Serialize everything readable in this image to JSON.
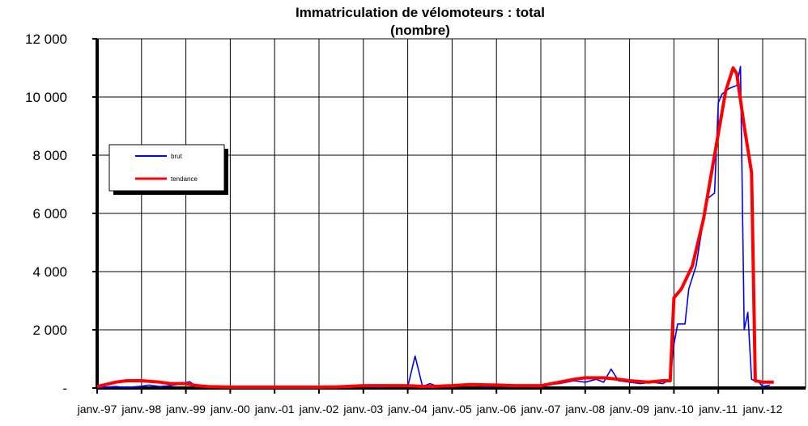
{
  "chart_data": {
    "type": "line",
    "title": "Immatriculation de vélomoteurs : total",
    "subtitle": "(nombre)",
    "xlabel": "",
    "ylabel": "",
    "ylim": [
      0,
      12000
    ],
    "y_ticks": [
      "-",
      "2 000",
      "4 000",
      "6 000",
      "8 000",
      "10 000",
      "12 000"
    ],
    "x_ticks": [
      "janv.-97",
      "janv.-98",
      "janv.-99",
      "janv.-00",
      "janv.-01",
      "janv.-02",
      "janv.-03",
      "janv.-04",
      "janv.-05",
      "janv.-06",
      "janv.-07",
      "janv.-08",
      "janv.-09",
      "janv.-10",
      "janv.-11",
      "janv.-12"
    ],
    "x_range": [
      "1997-01",
      "2012-01"
    ],
    "grid": true,
    "legend_position": "left",
    "colors": {
      "brut": "#0000ff",
      "tendance": "#ff0000"
    },
    "series": [
      {
        "name": "brut",
        "points": [
          [
            "1997-01",
            0
          ],
          [
            "1997-03",
            30
          ],
          [
            "1997-06",
            50
          ],
          [
            "1997-09",
            20
          ],
          [
            "1998-01",
            60
          ],
          [
            "1998-03",
            100
          ],
          [
            "1998-06",
            50
          ],
          [
            "1998-09",
            80
          ],
          [
            "1998-12",
            150
          ],
          [
            "1999-02",
            220
          ],
          [
            "1999-04",
            40
          ],
          [
            "1999-07",
            30
          ],
          [
            "2000-01",
            20
          ],
          [
            "2001-01",
            20
          ],
          [
            "2002-01",
            20
          ],
          [
            "2003-01",
            50
          ],
          [
            "2003-06",
            30
          ],
          [
            "2003-09",
            60
          ],
          [
            "2004-01",
            40
          ],
          [
            "2004-03",
            1100
          ],
          [
            "2004-05",
            50
          ],
          [
            "2004-07",
            150
          ],
          [
            "2004-09",
            60
          ],
          [
            "2005-01",
            40
          ],
          [
            "2005-04",
            120
          ],
          [
            "2005-07",
            100
          ],
          [
            "2005-10",
            50
          ],
          [
            "2006-01",
            60
          ],
          [
            "2006-06",
            50
          ],
          [
            "2007-01",
            100
          ],
          [
            "2007-06",
            150
          ],
          [
            "2007-10",
            250
          ],
          [
            "2008-01",
            200
          ],
          [
            "2008-04",
            300
          ],
          [
            "2008-06",
            200
          ],
          [
            "2008-08",
            650
          ],
          [
            "2008-10",
            250
          ],
          [
            "2009-01",
            200
          ],
          [
            "2009-04",
            150
          ],
          [
            "2009-07",
            200
          ],
          [
            "2009-10",
            150
          ],
          [
            "2009-12",
            300
          ],
          [
            "2010-01",
            1500
          ],
          [
            "2010-02",
            2200
          ],
          [
            "2010-04",
            2200
          ],
          [
            "2010-05",
            3400
          ],
          [
            "2010-07",
            4200
          ],
          [
            "2010-09",
            5800
          ],
          [
            "2010-10",
            6500
          ],
          [
            "2010-12",
            6700
          ],
          [
            "2011-01",
            9800
          ],
          [
            "2011-02",
            10100
          ],
          [
            "2011-04",
            10300
          ],
          [
            "2011-06",
            10400
          ],
          [
            "2011-07",
            11050
          ],
          [
            "2011-08",
            2000
          ],
          [
            "2011-09",
            2600
          ],
          [
            "2011-10",
            300
          ],
          [
            "2011-12",
            200
          ],
          [
            "2012-01",
            50
          ],
          [
            "2012-03",
            100
          ]
        ]
      },
      {
        "name": "tendance",
        "points": [
          [
            "1997-01",
            50
          ],
          [
            "1997-06",
            200
          ],
          [
            "1997-09",
            250
          ],
          [
            "1998-01",
            250
          ],
          [
            "1998-06",
            200
          ],
          [
            "1998-09",
            150
          ],
          [
            "1999-01",
            150
          ],
          [
            "1999-04",
            80
          ],
          [
            "1999-07",
            50
          ],
          [
            "2000-01",
            30
          ],
          [
            "2001-01",
            30
          ],
          [
            "2002-01",
            30
          ],
          [
            "2002-06",
            40
          ],
          [
            "2003-01",
            80
          ],
          [
            "2004-01",
            80
          ],
          [
            "2004-06",
            50
          ],
          [
            "2005-01",
            80
          ],
          [
            "2005-06",
            120
          ],
          [
            "2006-01",
            100
          ],
          [
            "2006-06",
            80
          ],
          [
            "2007-01",
            80
          ],
          [
            "2007-06",
            200
          ],
          [
            "2007-10",
            300
          ],
          [
            "2008-01",
            350
          ],
          [
            "2008-06",
            350
          ],
          [
            "2008-10",
            300
          ],
          [
            "2009-01",
            250
          ],
          [
            "2009-06",
            200
          ],
          [
            "2009-10",
            250
          ],
          [
            "2009-12",
            250
          ],
          [
            "2010-01",
            3100
          ],
          [
            "2010-03",
            3400
          ],
          [
            "2010-06",
            4200
          ],
          [
            "2010-09",
            5800
          ],
          [
            "2010-12",
            8000
          ],
          [
            "2011-03",
            10200
          ],
          [
            "2011-05",
            11000
          ],
          [
            "2011-06",
            10800
          ],
          [
            "2011-08",
            9000
          ],
          [
            "2011-10",
            7400
          ],
          [
            "2011-11",
            250
          ],
          [
            "2012-01",
            200
          ],
          [
            "2012-04",
            200
          ]
        ]
      }
    ]
  }
}
